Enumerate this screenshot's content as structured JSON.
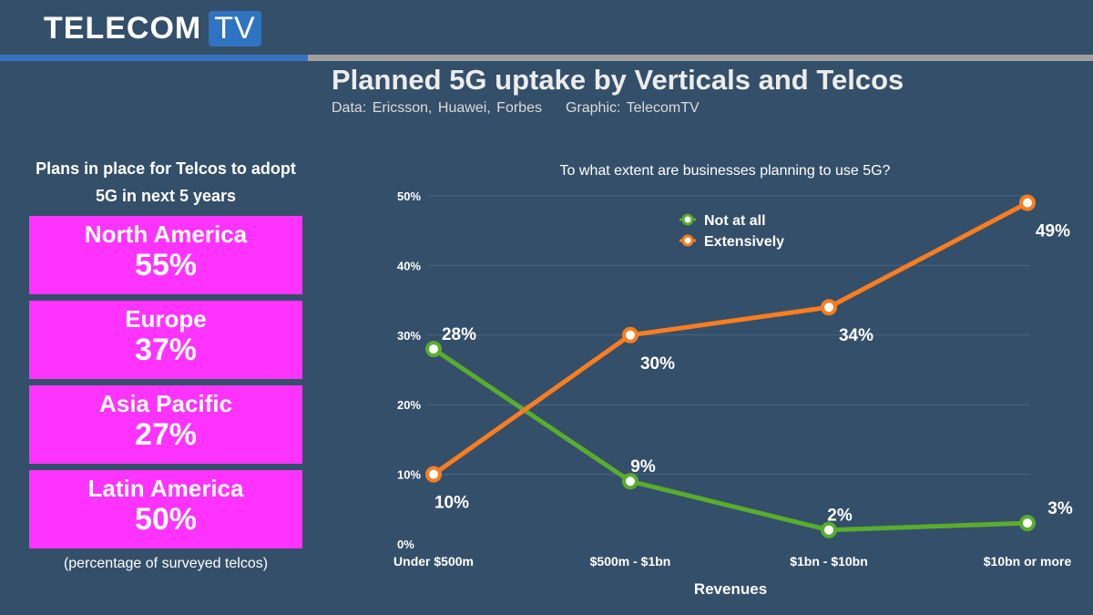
{
  "logo": {
    "text1": "TELECOM",
    "text2": "TV"
  },
  "header": {
    "title": "Planned 5G uptake by Verticals and Telcos",
    "source": "Data: Ericsson, Huawei, Forbes",
    "graphic": "Graphic: TelecomTV"
  },
  "left_panel": {
    "heading": "Plans in place for Telcos to adopt 5G in next 5 years",
    "note": "(percentage of surveyed telcos)",
    "color": "#ff33ff",
    "regions": [
      {
        "name": "North America",
        "value": "55%"
      },
      {
        "name": "Europe",
        "value": "37%"
      },
      {
        "name": "Asia Pacific",
        "value": "27%"
      },
      {
        "name": "Latin America",
        "value": "50%"
      }
    ]
  },
  "chart_data": {
    "type": "line",
    "title": "To what extent are businesses planning to use 5G?",
    "xlabel": "Revenues",
    "ylabel": "",
    "categories": [
      "Under $500m",
      "$500m - $1bn",
      "$1bn - $10bn",
      "$10bn or more"
    ],
    "ylim": [
      0,
      50
    ],
    "yticks": [
      "0%",
      "10%",
      "20%",
      "30%",
      "40%",
      "50%"
    ],
    "grid": true,
    "legend": "top-center",
    "series": [
      {
        "name": "Not at all",
        "values": [
          28,
          9,
          2,
          3
        ],
        "labels": [
          "28%",
          "9%",
          "2%",
          "3%"
        ],
        "color": "#5aac2e"
      },
      {
        "name": "Extensively",
        "values": [
          10,
          30,
          34,
          49
        ],
        "labels": [
          "10%",
          "30%",
          "34%",
          "49%"
        ],
        "color": "#fb7d1f"
      }
    ]
  }
}
